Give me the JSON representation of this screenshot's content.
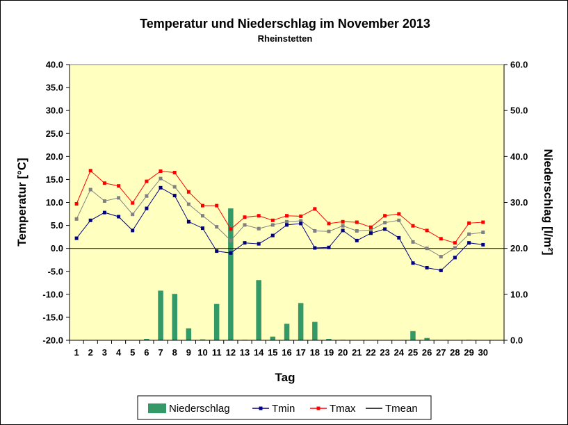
{
  "chart_data": {
    "type": "bar+line",
    "title": "Temperatur und Niederschlag im November 2013",
    "subtitle": "Rheinstetten",
    "xlabel": "Tag",
    "ylabel": "Temperatur [°C]",
    "y2label": "Niederschlag [l/m²]",
    "x": [
      1,
      2,
      3,
      4,
      5,
      6,
      7,
      8,
      9,
      10,
      11,
      12,
      13,
      14,
      15,
      16,
      17,
      18,
      19,
      20,
      21,
      22,
      23,
      24,
      25,
      26,
      27,
      28,
      29,
      30
    ],
    "ylim": [
      -20,
      40
    ],
    "y_ticks": [
      "40.0",
      "35.0",
      "30.0",
      "25.0",
      "20.0",
      "15.0",
      "10.0",
      "5.0",
      "0.0",
      "-5.0",
      "-10.0",
      "-15.0",
      "-20.0"
    ],
    "y2lim": [
      0,
      60
    ],
    "y2_ticks": [
      "60.0",
      "50.0",
      "40.0",
      "30.0",
      "20.0",
      "10.0",
      "0.0"
    ],
    "grid": false,
    "plot_background": "#ffffc0",
    "legend_position": "bottom",
    "series": [
      {
        "name": "Niederschlag",
        "type": "bar",
        "axis": "right",
        "color": "#339966",
        "values": [
          0,
          0,
          0,
          0,
          0,
          0.3,
          10.8,
          10.1,
          2.6,
          0.2,
          7.9,
          28.7,
          0.1,
          13.1,
          0.8,
          3.6,
          8.1,
          4.0,
          0.3,
          0.1,
          0,
          0,
          0,
          0,
          2.0,
          0.5,
          0,
          0,
          0.1,
          0
        ]
      },
      {
        "name": "Tmin",
        "type": "line",
        "axis": "left",
        "color": "#000080",
        "values": [
          2.2,
          6.1,
          7.8,
          6.9,
          3.9,
          8.7,
          13.2,
          11.5,
          5.8,
          4.4,
          -0.6,
          -1.0,
          1.2,
          1.0,
          2.8,
          5.1,
          5.4,
          0.1,
          0.2,
          3.9,
          1.7,
          3.3,
          4.2,
          2.3,
          -3.2,
          -4.2,
          -4.8,
          -2.0,
          1.2,
          0.8
        ]
      },
      {
        "name": "Tmax",
        "type": "line",
        "axis": "left",
        "color": "#ff0000",
        "values": [
          9.7,
          16.9,
          14.2,
          13.6,
          9.9,
          14.6,
          16.8,
          16.5,
          12.3,
          9.3,
          9.3,
          4.2,
          6.8,
          7.1,
          6.1,
          7.1,
          7.0,
          8.6,
          5.4,
          5.8,
          5.7,
          4.6,
          7.1,
          7.5,
          4.9,
          3.9,
          2.1,
          1.2,
          5.5,
          5.7
        ]
      },
      {
        "name": "Tmean",
        "type": "line",
        "axis": "left",
        "color": "#808080",
        "legend_color": "#000000",
        "values": [
          6.4,
          12.8,
          10.3,
          11.0,
          7.4,
          11.4,
          15.2,
          13.4,
          9.6,
          7.1,
          4.7,
          1.7,
          5.1,
          4.3,
          5.1,
          5.8,
          6.0,
          3.8,
          3.7,
          4.9,
          3.8,
          4.0,
          5.6,
          6.1,
          1.4,
          0.0,
          -1.8,
          0.1,
          3.1,
          3.5
        ]
      }
    ]
  }
}
